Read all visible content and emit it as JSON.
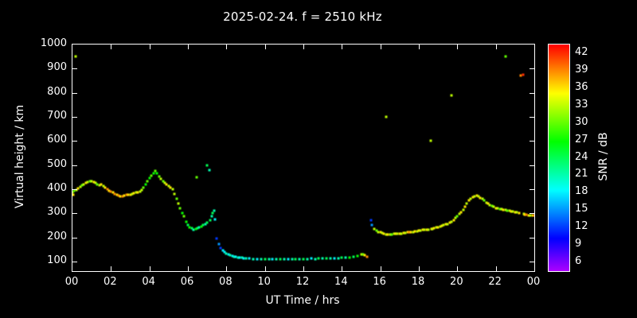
{
  "title": "2025-02-24. f = 2510 kHz",
  "colors": {
    "background": "#000000",
    "foreground": "#ffffff"
  },
  "chart_data": {
    "type": "scatter",
    "title": "2025-02-24. f = 2510 kHz",
    "xlabel": "UT Time / hrs",
    "ylabel": "Virtual height / km",
    "colorbar_label": "SNR / dB",
    "xlim": [
      0,
      24
    ],
    "ylim": [
      60,
      1000
    ],
    "grid": false,
    "legend": "colorbar-right",
    "x_ticks": [
      0,
      2,
      4,
      6,
      8,
      10,
      12,
      14,
      16,
      18,
      20,
      22,
      24
    ],
    "x_tick_labels": [
      "00",
      "02",
      "04",
      "06",
      "08",
      "10",
      "12",
      "14",
      "16",
      "18",
      "20",
      "22",
      "00"
    ],
    "y_ticks": [
      100,
      200,
      300,
      400,
      500,
      600,
      700,
      800,
      900,
      1000
    ],
    "y_tick_labels": [
      "100",
      "200",
      "300",
      "400",
      "500",
      "600",
      "700",
      "800",
      "900",
      "1000"
    ],
    "colorbar_ticks": [
      6,
      9,
      12,
      15,
      18,
      21,
      24,
      27,
      30,
      33,
      36,
      39,
      42
    ],
    "colorbar_range": [
      4.5,
      43.5
    ],
    "points": [
      [
        0.0,
        385,
        33
      ],
      [
        0.05,
        378,
        36
      ],
      [
        0.1,
        392,
        30
      ],
      [
        0.15,
        950,
        33
      ],
      [
        0.2,
        398,
        33
      ],
      [
        0.3,
        402,
        36
      ],
      [
        0.4,
        408,
        33
      ],
      [
        0.5,
        415,
        30
      ],
      [
        0.6,
        420,
        33
      ],
      [
        0.7,
        426,
        36
      ],
      [
        0.8,
        430,
        33
      ],
      [
        0.9,
        432,
        30
      ],
      [
        1.0,
        434,
        33
      ],
      [
        1.1,
        430,
        36
      ],
      [
        1.2,
        426,
        33
      ],
      [
        1.3,
        421,
        30
      ],
      [
        1.4,
        416,
        33
      ],
      [
        1.5,
        419,
        36
      ],
      [
        1.6,
        414,
        33
      ],
      [
        1.7,
        406,
        36
      ],
      [
        1.8,
        400,
        39
      ],
      [
        1.9,
        394,
        36
      ],
      [
        2.0,
        390,
        39
      ],
      [
        2.1,
        386,
        36
      ],
      [
        2.2,
        381,
        39
      ],
      [
        2.3,
        376,
        36
      ],
      [
        2.4,
        372,
        39
      ],
      [
        2.5,
        370,
        36
      ],
      [
        2.6,
        371,
        39
      ],
      [
        2.7,
        374,
        36
      ],
      [
        2.8,
        375,
        39
      ],
      [
        2.9,
        377,
        36
      ],
      [
        3.0,
        378,
        36
      ],
      [
        3.1,
        380,
        33
      ],
      [
        3.2,
        382,
        36
      ],
      [
        3.3,
        385,
        33
      ],
      [
        3.4,
        388,
        36
      ],
      [
        3.5,
        391,
        33
      ],
      [
        3.6,
        396,
        33
      ],
      [
        3.7,
        406,
        30
      ],
      [
        3.8,
        420,
        27
      ],
      [
        3.9,
        434,
        30
      ],
      [
        4.0,
        446,
        27
      ],
      [
        4.1,
        456,
        30
      ],
      [
        4.2,
        466,
        27
      ],
      [
        4.3,
        476,
        30
      ],
      [
        4.4,
        466,
        27
      ],
      [
        4.5,
        452,
        30
      ],
      [
        4.6,
        441,
        33
      ],
      [
        4.7,
        432,
        30
      ],
      [
        4.8,
        426,
        33
      ],
      [
        4.9,
        420,
        36
      ],
      [
        5.0,
        414,
        33
      ],
      [
        5.1,
        406,
        36
      ],
      [
        5.2,
        399,
        33
      ],
      [
        5.3,
        380,
        33
      ],
      [
        5.4,
        361,
        30
      ],
      [
        5.5,
        341,
        33
      ],
      [
        5.6,
        321,
        30
      ],
      [
        5.7,
        302,
        27
      ],
      [
        5.8,
        286,
        30
      ],
      [
        5.9,
        266,
        27
      ],
      [
        6.0,
        251,
        24
      ],
      [
        6.1,
        243,
        27
      ],
      [
        6.2,
        238,
        24
      ],
      [
        6.3,
        232,
        21
      ],
      [
        6.4,
        234,
        27
      ],
      [
        6.45,
        450,
        30
      ],
      [
        6.5,
        237,
        24
      ],
      [
        6.6,
        241,
        21
      ],
      [
        6.7,
        245,
        27
      ],
      [
        6.8,
        250,
        24
      ],
      [
        6.9,
        255,
        21
      ],
      [
        7.0,
        500,
        24
      ],
      [
        7.0,
        261,
        24
      ],
      [
        7.1,
        480,
        21
      ],
      [
        7.15,
        272,
        24
      ],
      [
        7.25,
        288,
        21
      ],
      [
        7.3,
        302,
        24
      ],
      [
        7.35,
        312,
        21
      ],
      [
        7.4,
        276,
        18
      ],
      [
        7.5,
        196,
        12
      ],
      [
        7.6,
        172,
        15
      ],
      [
        7.7,
        156,
        12
      ],
      [
        7.8,
        146,
        18
      ],
      [
        7.9,
        139,
        18
      ],
      [
        8.0,
        133,
        21
      ],
      [
        8.1,
        128,
        18
      ],
      [
        8.2,
        125,
        21
      ],
      [
        8.3,
        122,
        18
      ],
      [
        8.4,
        120,
        21
      ],
      [
        8.5,
        118,
        18
      ],
      [
        8.6,
        117,
        21
      ],
      [
        8.7,
        116,
        18
      ],
      [
        8.8,
        115,
        21
      ],
      [
        8.9,
        114,
        18
      ],
      [
        9.0,
        113,
        21
      ],
      [
        9.2,
        112,
        18
      ],
      [
        9.4,
        111,
        21
      ],
      [
        9.6,
        110,
        18
      ],
      [
        9.8,
        110,
        21
      ],
      [
        10.0,
        110,
        24
      ],
      [
        10.2,
        109,
        21
      ],
      [
        10.4,
        110,
        18
      ],
      [
        10.6,
        110,
        21
      ],
      [
        10.8,
        109,
        24
      ],
      [
        11.0,
        110,
        21
      ],
      [
        11.2,
        110,
        18
      ],
      [
        11.4,
        111,
        21
      ],
      [
        11.6,
        110,
        24
      ],
      [
        11.8,
        110,
        21
      ],
      [
        12.0,
        111,
        24
      ],
      [
        12.2,
        110,
        21
      ],
      [
        12.4,
        112,
        18
      ],
      [
        12.6,
        111,
        21
      ],
      [
        12.8,
        112,
        24
      ],
      [
        13.0,
        112,
        21
      ],
      [
        13.2,
        113,
        24
      ],
      [
        13.4,
        112,
        21
      ],
      [
        13.6,
        113,
        18
      ],
      [
        13.8,
        114,
        21
      ],
      [
        14.0,
        115,
        24
      ],
      [
        14.2,
        116,
        21
      ],
      [
        14.4,
        117,
        27
      ],
      [
        14.6,
        119,
        24
      ],
      [
        14.8,
        122,
        27
      ],
      [
        15.0,
        130,
        33
      ],
      [
        15.1,
        128,
        30
      ],
      [
        15.2,
        125,
        36
      ],
      [
        15.3,
        120,
        39
      ],
      [
        15.5,
        270,
        12
      ],
      [
        15.55,
        252,
        15
      ],
      [
        15.7,
        236,
        33
      ],
      [
        15.8,
        228,
        30
      ],
      [
        15.9,
        222,
        33
      ],
      [
        16.0,
        220,
        36
      ],
      [
        16.1,
        218,
        33
      ],
      [
        16.2,
        216,
        36
      ],
      [
        16.3,
        700,
        33
      ],
      [
        16.3,
        213,
        33
      ],
      [
        16.4,
        212,
        36
      ],
      [
        16.5,
        212,
        33
      ],
      [
        16.6,
        213,
        30
      ],
      [
        16.7,
        214,
        33
      ],
      [
        16.8,
        215,
        36
      ],
      [
        16.9,
        214,
        33
      ],
      [
        17.0,
        215,
        36
      ],
      [
        17.1,
        216,
        33
      ],
      [
        17.2,
        217,
        36
      ],
      [
        17.3,
        218,
        33
      ],
      [
        17.4,
        220,
        36
      ],
      [
        17.5,
        221,
        39
      ],
      [
        17.6,
        222,
        36
      ],
      [
        17.7,
        223,
        33
      ],
      [
        17.8,
        225,
        36
      ],
      [
        17.9,
        226,
        33
      ],
      [
        18.0,
        228,
        36
      ],
      [
        18.1,
        229,
        33
      ],
      [
        18.2,
        230,
        36
      ],
      [
        18.3,
        231,
        33
      ],
      [
        18.4,
        232,
        36
      ],
      [
        18.5,
        233,
        33
      ],
      [
        18.6,
        600,
        33
      ],
      [
        18.65,
        235,
        36
      ],
      [
        18.7,
        236,
        33
      ],
      [
        18.8,
        238,
        36
      ],
      [
        18.9,
        240,
        33
      ],
      [
        19.0,
        242,
        36
      ],
      [
        19.1,
        245,
        33
      ],
      [
        19.2,
        248,
        36
      ],
      [
        19.3,
        250,
        33
      ],
      [
        19.4,
        253,
        36
      ],
      [
        19.5,
        256,
        33
      ],
      [
        19.6,
        260,
        36
      ],
      [
        19.7,
        790,
        33
      ],
      [
        19.7,
        265,
        33
      ],
      [
        19.8,
        272,
        36
      ],
      [
        19.9,
        280,
        33
      ],
      [
        20.0,
        288,
        30
      ],
      [
        20.1,
        296,
        33
      ],
      [
        20.2,
        305,
        36
      ],
      [
        20.3,
        315,
        33
      ],
      [
        20.4,
        328,
        36
      ],
      [
        20.5,
        340,
        33
      ],
      [
        20.6,
        352,
        36
      ],
      [
        20.7,
        360,
        33
      ],
      [
        20.8,
        366,
        36
      ],
      [
        20.9,
        370,
        33
      ],
      [
        21.0,
        372,
        36
      ],
      [
        21.1,
        370,
        33
      ],
      [
        21.2,
        365,
        36
      ],
      [
        21.3,
        360,
        33
      ],
      [
        21.4,
        352,
        30
      ],
      [
        21.5,
        345,
        33
      ],
      [
        21.6,
        340,
        36
      ],
      [
        21.7,
        335,
        33
      ],
      [
        21.8,
        330,
        30
      ],
      [
        21.9,
        326,
        33
      ],
      [
        22.0,
        322,
        36
      ],
      [
        22.1,
        320,
        33
      ],
      [
        22.2,
        318,
        30
      ],
      [
        22.3,
        316,
        33
      ],
      [
        22.4,
        315,
        36
      ],
      [
        22.5,
        950,
        30
      ],
      [
        22.5,
        314,
        33
      ],
      [
        22.6,
        312,
        30
      ],
      [
        22.7,
        310,
        33
      ],
      [
        22.8,
        308,
        36
      ],
      [
        22.9,
        306,
        33
      ],
      [
        23.0,
        305,
        36
      ],
      [
        23.1,
        303,
        33
      ],
      [
        23.2,
        300,
        36
      ],
      [
        23.3,
        870,
        39
      ],
      [
        23.4,
        876,
        42
      ],
      [
        23.45,
        298,
        33
      ],
      [
        23.5,
        295,
        36
      ],
      [
        23.6,
        293,
        39
      ],
      [
        23.7,
        292,
        36
      ],
      [
        23.8,
        291,
        33
      ],
      [
        23.9,
        290,
        36
      ],
      [
        24.0,
        292,
        39
      ]
    ]
  }
}
